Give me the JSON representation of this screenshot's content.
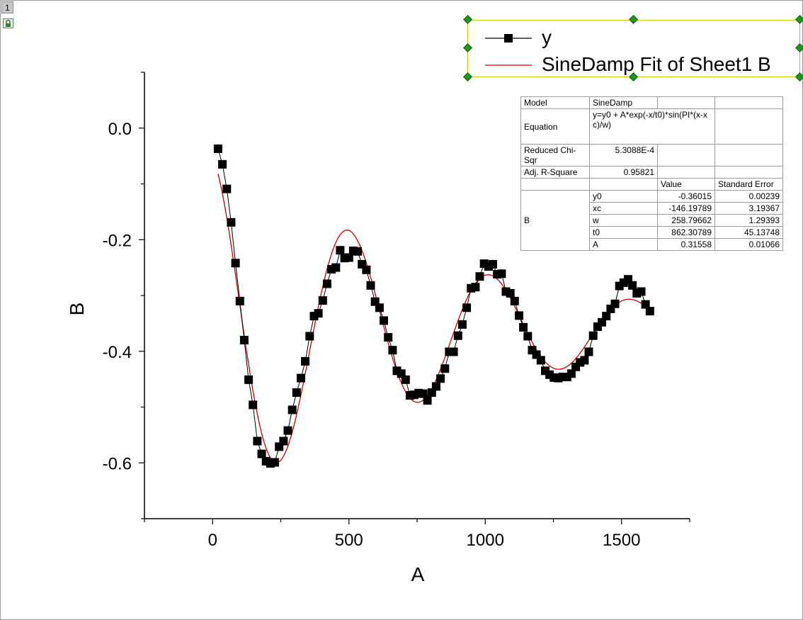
{
  "layer": {
    "tab_label": "1"
  },
  "icons": {
    "layer_lock": "lock-icon"
  },
  "colors": {
    "data_series": "#000000",
    "fit_line": "#cc0000",
    "legend_border": "#d8c400",
    "handle": "#1a9a1a"
  },
  "legend": {
    "entries": [
      {
        "label": "y",
        "style": "line-square"
      },
      {
        "label": "SineDamp Fit of Sheet1 B",
        "style": "red-line"
      }
    ]
  },
  "fit_table": {
    "model_label": "Model",
    "model_value": "SineDamp",
    "equation_label": "Equation",
    "equation_value": "y=y0 + A*exp(-x/t0)*sin(PI*(x-xc)/w)",
    "chi_label": "Reduced Chi-Sqr",
    "chi_value": "5.3088E-4",
    "adjr_label": "Adj. R-Square",
    "adjr_value": "0.95821",
    "value_header": "Value",
    "se_header": "Standard Error",
    "group_label": "B",
    "params": [
      {
        "name": "y0",
        "value": "-0.36015",
        "error": "0.00239"
      },
      {
        "name": "xc",
        "value": "-146.19789",
        "error": "3.19367"
      },
      {
        "name": "w",
        "value": "258.79662",
        "error": "1.29393"
      },
      {
        "name": "t0",
        "value": "862.30789",
        "error": "45.13748"
      },
      {
        "name": "A",
        "value": "0.31558",
        "error": "0.01066"
      }
    ]
  },
  "chart_data": {
    "type": "scatter",
    "xlabel": "A",
    "ylabel": "B",
    "xlim": [
      -250,
      1750
    ],
    "ylim": [
      -0.7,
      0.1
    ],
    "x_ticks": [
      0,
      500,
      1000,
      1500
    ],
    "y_ticks": [
      0.0,
      -0.2,
      -0.4,
      -0.6
    ],
    "x_tick_labels": [
      "0",
      "500",
      "1000",
      "1500"
    ],
    "y_tick_labels": [
      "0.0",
      "-0.2",
      "-0.4",
      "-0.6"
    ],
    "legend_position": "top-right",
    "grid": false,
    "series": [
      {
        "name": "y",
        "style": "line-square",
        "x": [
          20,
          36,
          52,
          68,
          84,
          100,
          116,
          132,
          148,
          164,
          180,
          196,
          212,
          228,
          244,
          260,
          276,
          292,
          308,
          324,
          340,
          356,
          372,
          388,
          404,
          420,
          436,
          452,
          468,
          484,
          500,
          516,
          532,
          548,
          564,
          580,
          596,
          612,
          628,
          644,
          660,
          676,
          692,
          708,
          724,
          740,
          756,
          772,
          788,
          804,
          820,
          836,
          852,
          868,
          884,
          900,
          916,
          932,
          948,
          964,
          980,
          996,
          1012,
          1028,
          1044,
          1060,
          1076,
          1092,
          1108,
          1124,
          1140,
          1156,
          1172,
          1188,
          1204,
          1220,
          1236,
          1252,
          1268,
          1284,
          1300,
          1316,
          1332,
          1348,
          1364,
          1380,
          1396,
          1412,
          1428,
          1444,
          1460,
          1476,
          1492,
          1508,
          1524,
          1540,
          1556,
          1572,
          1588,
          1604
        ],
        "y": [
          -0.037,
          -0.065,
          -0.109,
          -0.169,
          -0.242,
          -0.31,
          -0.38,
          -0.451,
          -0.496,
          -0.561,
          -0.584,
          -0.597,
          -0.601,
          -0.599,
          -0.571,
          -0.561,
          -0.542,
          -0.505,
          -0.474,
          -0.448,
          -0.418,
          -0.373,
          -0.337,
          -0.332,
          -0.309,
          -0.279,
          -0.253,
          -0.25,
          -0.219,
          -0.233,
          -0.232,
          -0.22,
          -0.221,
          -0.244,
          -0.254,
          -0.282,
          -0.311,
          -0.322,
          -0.345,
          -0.375,
          -0.398,
          -0.435,
          -0.44,
          -0.451,
          -0.479,
          -0.478,
          -0.475,
          -0.476,
          -0.488,
          -0.474,
          -0.463,
          -0.449,
          -0.431,
          -0.401,
          -0.401,
          -0.372,
          -0.352,
          -0.322,
          -0.287,
          -0.285,
          -0.266,
          -0.243,
          -0.248,
          -0.244,
          -0.262,
          -0.261,
          -0.293,
          -0.296,
          -0.31,
          -0.336,
          -0.357,
          -0.373,
          -0.398,
          -0.406,
          -0.416,
          -0.435,
          -0.442,
          -0.447,
          -0.448,
          -0.446,
          -0.446,
          -0.44,
          -0.428,
          -0.42,
          -0.416,
          -0.401,
          -0.372,
          -0.356,
          -0.348,
          -0.337,
          -0.324,
          -0.315,
          -0.283,
          -0.277,
          -0.271,
          -0.282,
          -0.296,
          -0.293,
          -0.316,
          -0.328
        ]
      },
      {
        "name": "SineDamp Fit of Sheet1 B",
        "style": "red-line",
        "function": "y0 + A*exp(-x/t0)*sin(PI*(x-xc)/w)",
        "params": {
          "y0": -0.36015,
          "xc": -146.19789,
          "w": 258.79662,
          "t0": 862.30789,
          "A": 0.31558
        },
        "x_range": [
          20,
          1604
        ]
      }
    ]
  }
}
